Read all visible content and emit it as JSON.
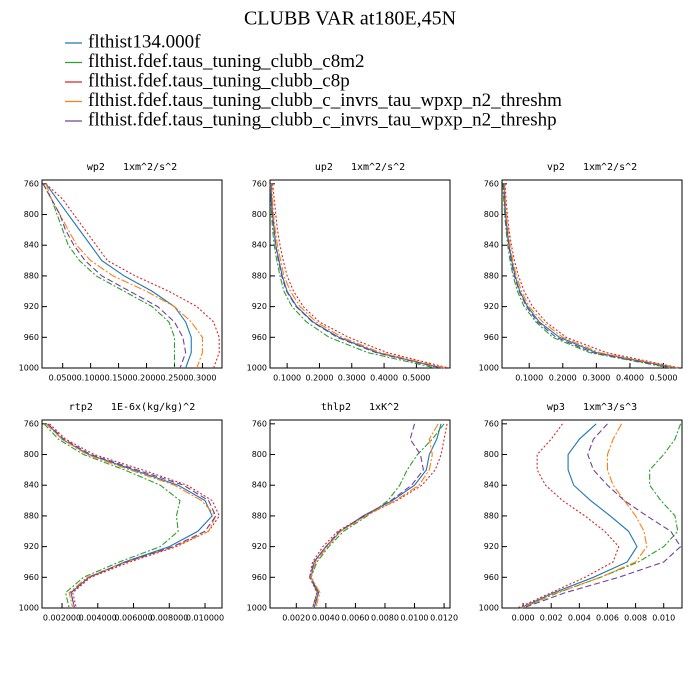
{
  "title": "CLUBB VAR at180E,45N",
  "legend": [
    {
      "name": "flthist134.000f",
      "color": "#1f77b4",
      "dash": "none"
    },
    {
      "name": "flthist.fdef.taus_tuning_clubb_c8m2",
      "color": "#2ca02c",
      "dash": "6,2,2,2"
    },
    {
      "name": "flthist.fdef.taus_tuning_clubb_c8p",
      "color": "#d62728",
      "dash": "2,2"
    },
    {
      "name": "flthist.fdef.taus_tuning_clubb_c_invrs_tau_wpxp_n2_threshm",
      "color": "#ff7f0e",
      "dash": "8,2,2,2"
    },
    {
      "name": "flthist.fdef.taus_tuning_clubb_c_invrs_tau_wpxp_n2_threshp",
      "color": "#7040a0",
      "dash": "6,3"
    }
  ],
  "chart_data": [
    {
      "type": "line",
      "title": "wp2   1xm^2/s^2",
      "y": [
        760,
        780,
        800,
        820,
        840,
        860,
        880,
        900,
        920,
        940,
        960,
        980,
        1000
      ],
      "series": [
        {
          "values": [
            0.02,
            0.04,
            0.06,
            0.08,
            0.1,
            0.12,
            0.16,
            0.21,
            0.25,
            0.27,
            0.28,
            0.28,
            0.27
          ]
        },
        {
          "values": [
            0.015,
            0.03,
            0.04,
            0.05,
            0.06,
            0.08,
            0.11,
            0.16,
            0.21,
            0.24,
            0.25,
            0.25,
            0.25
          ]
        },
        {
          "values": [
            0.02,
            0.05,
            0.07,
            0.09,
            0.11,
            0.13,
            0.18,
            0.24,
            0.29,
            0.32,
            0.33,
            0.33,
            0.32
          ]
        },
        {
          "values": [
            0.02,
            0.03,
            0.045,
            0.06,
            0.075,
            0.1,
            0.14,
            0.2,
            0.25,
            0.28,
            0.3,
            0.3,
            0.29
          ]
        },
        {
          "values": [
            0.015,
            0.03,
            0.045,
            0.055,
            0.07,
            0.09,
            0.12,
            0.17,
            0.22,
            0.25,
            0.265,
            0.27,
            0.26
          ]
        }
      ],
      "xlim": [
        0.013,
        0.335
      ],
      "xticks": [
        {
          "value": 0.05,
          "label": "0.0500"
        },
        {
          "value": 0.1,
          "label": "0.1000"
        },
        {
          "value": 0.15,
          "label": "0.1500"
        },
        {
          "value": 0.2,
          "label": "0.2000"
        },
        {
          "value": 0.25,
          "label": "0.2500"
        },
        {
          "value": 0.3,
          "label": "0.3000"
        }
      ],
      "ylim": [
        1000,
        755
      ],
      "yticks": [
        760,
        800,
        840,
        880,
        920,
        960,
        1000
      ]
    },
    {
      "type": "line",
      "title": "up2   1xm^2/s^2",
      "y": [
        760,
        780,
        800,
        820,
        840,
        860,
        880,
        900,
        920,
        940,
        960,
        980,
        1000
      ],
      "series": [
        {
          "values": [
            0.05,
            0.052,
            0.055,
            0.06,
            0.065,
            0.075,
            0.085,
            0.1,
            0.13,
            0.18,
            0.26,
            0.38,
            0.58
          ]
        },
        {
          "values": [
            0.048,
            0.05,
            0.052,
            0.055,
            0.06,
            0.068,
            0.078,
            0.09,
            0.115,
            0.16,
            0.23,
            0.35,
            0.56
          ]
        },
        {
          "values": [
            0.055,
            0.06,
            0.065,
            0.07,
            0.078,
            0.088,
            0.1,
            0.12,
            0.15,
            0.2,
            0.29,
            0.41,
            0.6
          ]
        },
        {
          "values": [
            0.052,
            0.055,
            0.058,
            0.063,
            0.07,
            0.08,
            0.09,
            0.11,
            0.14,
            0.19,
            0.27,
            0.39,
            0.59
          ]
        },
        {
          "values": [
            0.05,
            0.051,
            0.054,
            0.059,
            0.064,
            0.073,
            0.083,
            0.098,
            0.128,
            0.178,
            0.255,
            0.375,
            0.575
          ]
        }
      ],
      "xlim": [
        0.047,
        0.604
      ],
      "xticks": [
        {
          "value": 0.1,
          "label": "0.1000"
        },
        {
          "value": 0.2,
          "label": "0.2000"
        },
        {
          "value": 0.3,
          "label": "0.3000"
        },
        {
          "value": 0.4,
          "label": "0.4000"
        },
        {
          "value": 0.5,
          "label": "0.5000"
        }
      ],
      "ylim": [
        1000,
        755
      ],
      "yticks": [
        760,
        800,
        840,
        880,
        920,
        960,
        1000
      ]
    },
    {
      "type": "line",
      "title": "vp2   1xm^2/s^2",
      "y": [
        760,
        780,
        800,
        820,
        840,
        860,
        880,
        900,
        920,
        940,
        960,
        980,
        1000
      ],
      "series": [
        {
          "values": [
            0.025,
            0.027,
            0.03,
            0.034,
            0.04,
            0.048,
            0.058,
            0.072,
            0.095,
            0.13,
            0.19,
            0.3,
            0.54
          ]
        },
        {
          "values": [
            0.022,
            0.024,
            0.027,
            0.031,
            0.036,
            0.043,
            0.052,
            0.065,
            0.085,
            0.12,
            0.17,
            0.28,
            0.52
          ]
        },
        {
          "values": [
            0.028,
            0.031,
            0.035,
            0.04,
            0.047,
            0.056,
            0.068,
            0.085,
            0.11,
            0.15,
            0.21,
            0.33,
            0.55
          ]
        },
        {
          "values": [
            0.026,
            0.029,
            0.032,
            0.037,
            0.043,
            0.051,
            0.062,
            0.077,
            0.1,
            0.14,
            0.2,
            0.31,
            0.545
          ]
        },
        {
          "values": [
            0.024,
            0.026,
            0.029,
            0.033,
            0.039,
            0.046,
            0.056,
            0.07,
            0.092,
            0.125,
            0.18,
            0.29,
            0.53
          ]
        }
      ],
      "xlim": [
        0.019,
        0.555
      ],
      "xticks": [
        {
          "value": 0.1,
          "label": "0.1000"
        },
        {
          "value": 0.2,
          "label": "0.2000"
        },
        {
          "value": 0.3,
          "label": "0.3000"
        },
        {
          "value": 0.4,
          "label": "0.4000"
        },
        {
          "value": 0.5,
          "label": "0.5000"
        }
      ],
      "ylim": [
        1000,
        755
      ],
      "yticks": [
        760,
        800,
        840,
        880,
        920,
        960,
        1000
      ]
    },
    {
      "type": "line",
      "title": "rtp2   1E-6x(kg/kg)^2",
      "y": [
        760,
        780,
        800,
        820,
        840,
        860,
        880,
        900,
        920,
        940,
        960,
        980,
        1000
      ],
      "series": [
        {
          "values": [
            0.0012,
            0.002,
            0.0035,
            0.006,
            0.0085,
            0.01,
            0.0104,
            0.0096,
            0.008,
            0.0055,
            0.0035,
            0.0025,
            0.0027
          ]
        },
        {
          "values": [
            0.001,
            0.0018,
            0.0032,
            0.0055,
            0.0075,
            0.0086,
            0.0084,
            0.0085,
            0.0075,
            0.0052,
            0.0032,
            0.0022,
            0.0024
          ]
        },
        {
          "values": [
            0.0013,
            0.0022,
            0.0038,
            0.0065,
            0.009,
            0.0104,
            0.0108,
            0.0102,
            0.0084,
            0.0058,
            0.0036,
            0.0026,
            0.0028
          ]
        },
        {
          "values": [
            0.0011,
            0.002,
            0.0034,
            0.0058,
            0.0083,
            0.0098,
            0.0106,
            0.0102,
            0.0083,
            0.0056,
            0.0034,
            0.0024,
            0.0026
          ]
        },
        {
          "values": [
            0.0012,
            0.0021,
            0.0036,
            0.0062,
            0.0088,
            0.0102,
            0.0106,
            0.01,
            0.0082,
            0.0056,
            0.0035,
            0.0025,
            0.0027
          ]
        }
      ],
      "xlim": [
        0.00088,
        0.01095
      ],
      "xticks": [
        {
          "value": 0.002,
          "label": "0.002000"
        },
        {
          "value": 0.004,
          "label": "0.004000"
        },
        {
          "value": 0.006,
          "label": "0.006000"
        },
        {
          "value": 0.008,
          "label": "0.008000"
        },
        {
          "value": 0.01,
          "label": "0.010000"
        }
      ],
      "ylim": [
        1000,
        755
      ],
      "yticks": [
        760,
        800,
        840,
        880,
        920,
        960,
        1000
      ]
    },
    {
      "type": "line",
      "title": "thlp2   1xK^2",
      "y": [
        760,
        780,
        800,
        820,
        840,
        860,
        880,
        900,
        920,
        940,
        960,
        980,
        1000
      ],
      "series": [
        {
          "values": [
            0.0118,
            0.0115,
            0.011,
            0.0108,
            0.01,
            0.0085,
            0.0065,
            0.005,
            0.004,
            0.0032,
            0.003,
            0.0035,
            0.0032
          ]
        },
        {
          "values": [
            0.012,
            0.0112,
            0.0102,
            0.0095,
            0.009,
            0.0082,
            0.0068,
            0.0052,
            0.0042,
            0.0034,
            0.003,
            0.0034,
            0.0031
          ]
        },
        {
          "values": [
            0.0122,
            0.012,
            0.0118,
            0.0114,
            0.0105,
            0.0088,
            0.0066,
            0.0048,
            0.0038,
            0.0031,
            0.0029,
            0.0034,
            0.0031
          ]
        },
        {
          "values": [
            0.0116,
            0.011,
            0.0112,
            0.011,
            0.0103,
            0.0087,
            0.0067,
            0.005,
            0.0041,
            0.0033,
            0.003,
            0.0036,
            0.0033
          ]
        },
        {
          "values": [
            0.01,
            0.0097,
            0.0104,
            0.0106,
            0.0098,
            0.0084,
            0.0066,
            0.0049,
            0.004,
            0.0032,
            0.0029,
            0.0035,
            0.0032
          ]
        }
      ],
      "xlim": [
        0.00022,
        0.0124
      ],
      "xticks": [
        {
          "value": 0.002,
          "label": "0.0020"
        },
        {
          "value": 0.004,
          "label": "0.0040"
        },
        {
          "value": 0.006,
          "label": "0.0060"
        },
        {
          "value": 0.008,
          "label": "0.0080"
        },
        {
          "value": 0.01,
          "label": "0.0100"
        },
        {
          "value": 0.012,
          "label": "0.0120"
        }
      ],
      "ylim": [
        1000,
        755
      ],
      "yticks": [
        760,
        800,
        840,
        880,
        920,
        960,
        1000
      ]
    },
    {
      "type": "line",
      "title": "wp3   1xm^3/s^3",
      "y": [
        760,
        780,
        800,
        820,
        840,
        860,
        880,
        900,
        920,
        940,
        960,
        980,
        1000
      ],
      "series": [
        {
          "values": [
            0.0052,
            0.004,
            0.0032,
            0.0032,
            0.0036,
            0.0048,
            0.0062,
            0.0075,
            0.0081,
            0.0074,
            0.005,
            0.0022,
            -0.0002
          ]
        },
        {
          "values": [
            0.0112,
            0.0108,
            0.01,
            0.009,
            0.009,
            0.0098,
            0.0108,
            0.011,
            0.01,
            0.0082,
            0.0055,
            0.0025,
            -0.0001
          ]
        },
        {
          "values": [
            0.0028,
            0.002,
            0.001,
            0.001,
            0.0016,
            0.0028,
            0.0044,
            0.0058,
            0.0068,
            0.0064,
            0.0044,
            0.002,
            -0.0004
          ]
        },
        {
          "values": [
            0.007,
            0.0064,
            0.006,
            0.006,
            0.0064,
            0.0072,
            0.008,
            0.0086,
            0.0088,
            0.008,
            0.0055,
            0.0024,
            -0.0001
          ]
        },
        {
          "values": [
            0.006,
            0.005,
            0.0046,
            0.005,
            0.006,
            0.0072,
            0.0088,
            0.0105,
            0.0112,
            0.01,
            0.0068,
            0.003,
            0.0
          ]
        }
      ],
      "xlim": [
        -0.0015,
        0.0113
      ],
      "xticks": [
        {
          "value": 0,
          "label": "0.000"
        },
        0.002,
        0.004,
        0.006,
        0.008,
        {
          "value": 0.01,
          "label": "0.010"
        }
      ],
      "ylim": [
        1000,
        755
      ],
      "yticks": [
        760,
        800,
        840,
        880,
        920,
        960,
        1000
      ]
    }
  ]
}
